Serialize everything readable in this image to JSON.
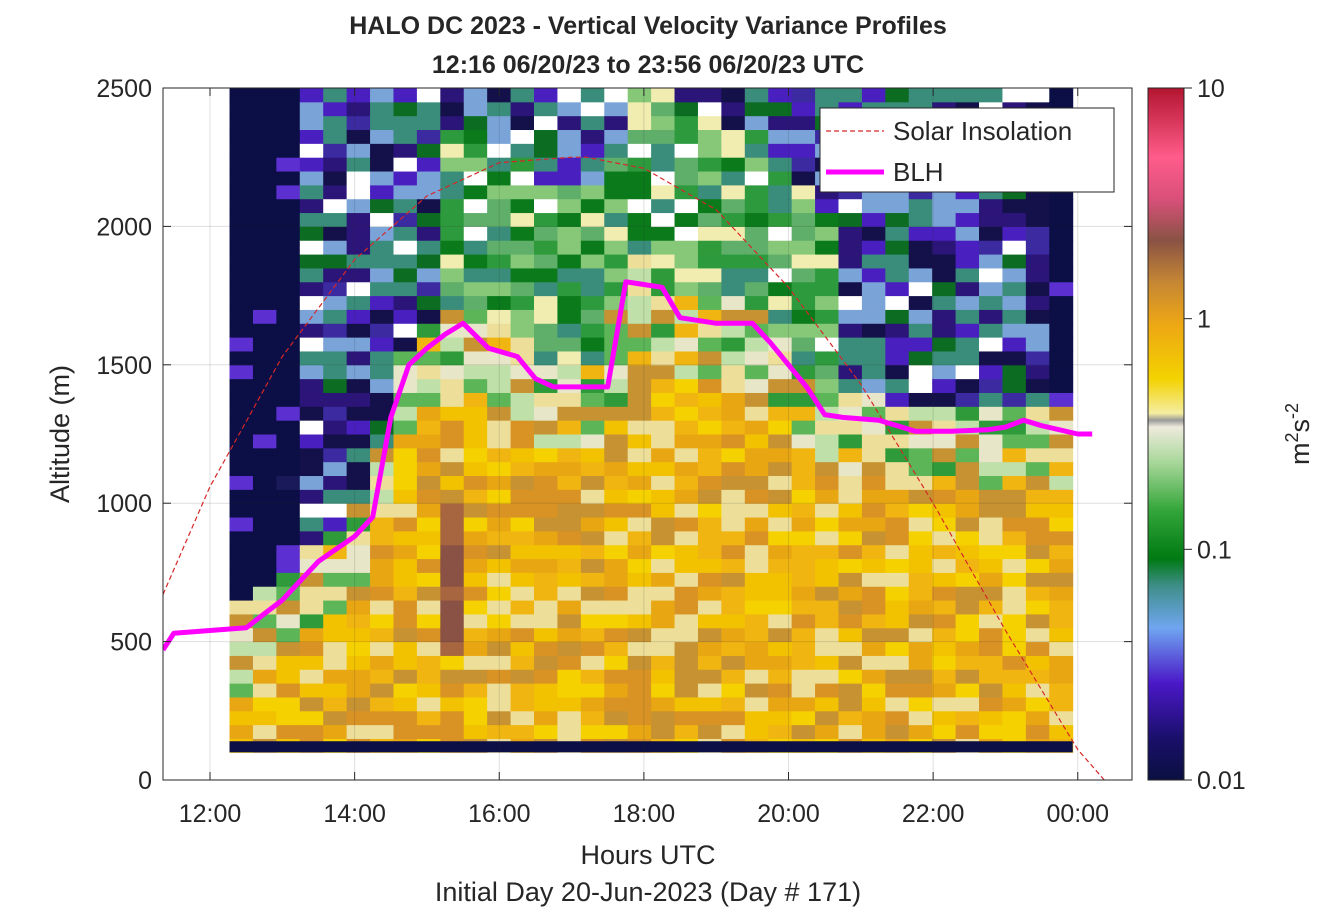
{
  "chart_data": {
    "type": "heatmap",
    "title": "HALO DC 2023 - Vertical Velocity Variance Profiles",
    "subtitle": "12:16 06/20/23 to 23:56 06/20/23  UTC",
    "xlabel": "Hours UTC",
    "xlabel2": "Initial Day 20-Jun-2023 (Day # 171)",
    "ylabel": "Altitude (m)",
    "colorbar_label_base": "m",
    "colorbar_label_sup1": "2",
    "colorbar_label_mid": "s",
    "colorbar_label_sup2": "-2",
    "xlim": [
      11.35,
      24.75
    ],
    "ylim": [
      0,
      2500
    ],
    "x_ticks": [
      12,
      14,
      16,
      18,
      20,
      22,
      24
    ],
    "x_tick_labels": [
      "12:00",
      "14:00",
      "16:00",
      "18:00",
      "20:00",
      "22:00",
      "00:00"
    ],
    "y_ticks": [
      0,
      500,
      1000,
      1500,
      2000,
      2500
    ],
    "y_tick_labels": [
      "0",
      "500",
      "1000",
      "1500",
      "2000",
      "2500"
    ],
    "colorbar_scale": "log",
    "colorbar_range": [
      0.01,
      10
    ],
    "colorbar_ticks": [
      0.01,
      0.1,
      1,
      10
    ],
    "colorbar_tick_labels": [
      "0.01",
      "0.1",
      "1",
      "10"
    ],
    "heatmap_time_range": [
      12.27,
      23.93
    ],
    "heatmap_alt_range": [
      100,
      2500
    ],
    "heatmap_bin_height_m": 50,
    "grid": true,
    "legend_position": "top-right",
    "series": [
      {
        "name": "Solar Insolation",
        "style": "dashed",
        "color": "#d62728",
        "x": [
          11.35,
          12.0,
          13.0,
          14.0,
          15.0,
          16.0,
          17.0,
          17.2,
          18.0,
          19.0,
          20.0,
          21.0,
          22.0,
          23.0,
          24.0,
          24.7
        ],
        "y": [
          670,
          1060,
          1530,
          1880,
          2110,
          2230,
          2250,
          2250,
          2210,
          2060,
          1780,
          1430,
          1000,
          540,
          110,
          -100
        ]
      },
      {
        "name": "BLH",
        "style": "solid",
        "color": "#ff00ff",
        "x": [
          11.35,
          11.5,
          12.0,
          12.5,
          12.75,
          13.0,
          13.25,
          13.5,
          14.0,
          14.25,
          14.5,
          14.75,
          15.0,
          15.25,
          15.5,
          15.85,
          16.25,
          16.5,
          16.75,
          17.0,
          17.5,
          17.75,
          18.0,
          18.25,
          18.5,
          19.0,
          19.5,
          19.75,
          20.0,
          20.25,
          20.5,
          20.75,
          21.25,
          21.75,
          22.25,
          22.75,
          23.0,
          23.25,
          23.5,
          24.0,
          24.2
        ],
        "y": [
          470,
          530,
          540,
          550,
          600,
          650,
          720,
          790,
          880,
          950,
          1310,
          1500,
          1560,
          1610,
          1650,
          1560,
          1530,
          1450,
          1420,
          1420,
          1420,
          1800,
          1790,
          1780,
          1670,
          1650,
          1650,
          1580,
          1500,
          1420,
          1320,
          1310,
          1300,
          1260,
          1260,
          1265,
          1275,
          1300,
          1280,
          1250,
          1250
        ]
      }
    ]
  }
}
